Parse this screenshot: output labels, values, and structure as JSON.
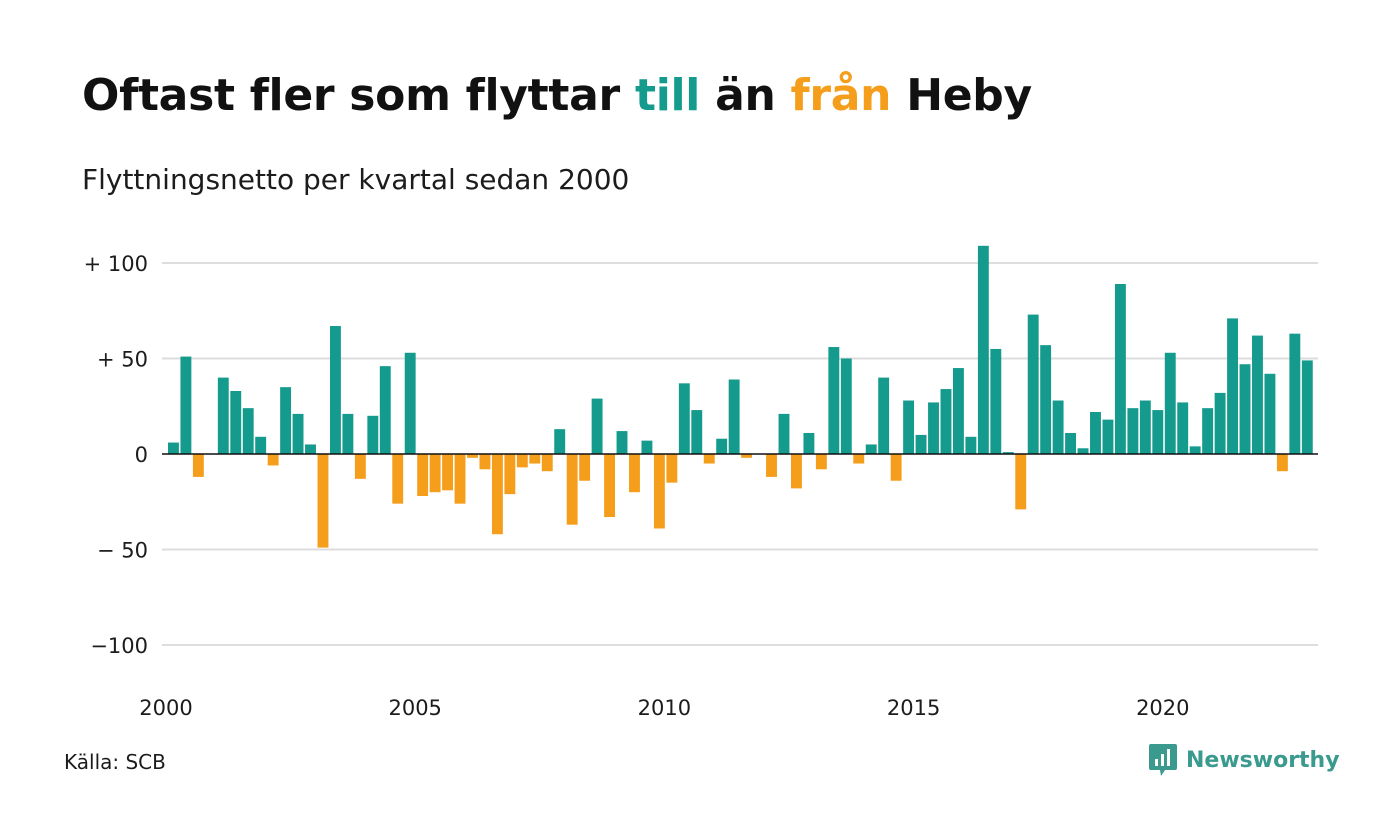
{
  "title": {
    "part1": "Oftast fler som flyttar ",
    "till": "till",
    "part2": " än ",
    "fran": "från",
    "part3": " Heby"
  },
  "subtitle": "Flyttningsnetto per kvartal sedan 2000",
  "source": "Källa: SCB",
  "brand": {
    "name": "Newsworthy",
    "icon": "newsworthy-logo-icon"
  },
  "colors": {
    "positive": "#159b8d",
    "negative": "#f59e1b",
    "grid": "#dddddd",
    "text": "#1c1c1c"
  },
  "chart_data": {
    "type": "bar",
    "x_start_year": 2000,
    "periods_per_year": 4,
    "ylim": [
      -100,
      100
    ],
    "yticks": [
      100,
      50,
      0,
      -50,
      -100
    ],
    "ytick_labels": [
      "+ 100",
      "+  50",
      "0",
      "− 50",
      "−100"
    ],
    "xticks": [
      2000,
      2005,
      2010,
      2015,
      2020
    ],
    "xtick_labels": [
      "2000",
      "2005",
      "2010",
      "2015",
      "2020"
    ],
    "grid": true,
    "values": [
      6,
      51,
      -12,
      0,
      40,
      33,
      24,
      9,
      -6,
      35,
      21,
      5,
      -49,
      67,
      21,
      -13,
      20,
      46,
      -26,
      53,
      -22,
      -20,
      -19,
      -26,
      -2,
      -8,
      -42,
      -21,
      -7,
      -5,
      -9,
      13,
      -37,
      -14,
      29,
      -33,
      12,
      -20,
      7,
      -39,
      -15,
      37,
      23,
      -5,
      8,
      39,
      -2,
      0,
      -12,
      21,
      -18,
      11,
      -8,
      56,
      50,
      -5,
      5,
      40,
      -14,
      28,
      10,
      27,
      34,
      45,
      9,
      109,
      55,
      1,
      -29,
      73,
      57,
      28,
      11,
      3,
      22,
      18,
      89,
      24,
      28,
      23,
      53,
      27,
      4,
      24,
      32,
      71,
      47,
      62,
      42,
      -9,
      63,
      49
    ]
  }
}
